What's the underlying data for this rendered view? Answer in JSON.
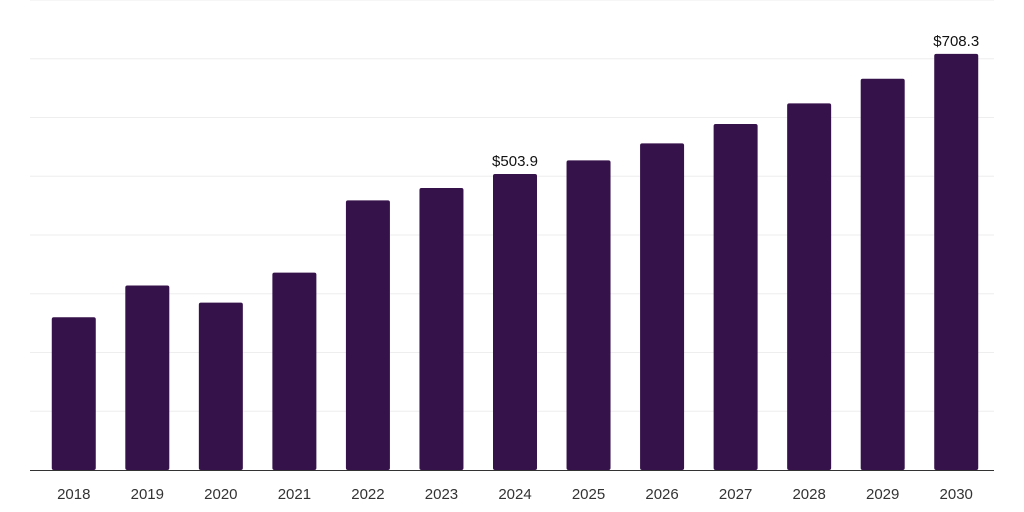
{
  "chart_data": {
    "type": "bar",
    "categories": [
      "2018",
      "2019",
      "2020",
      "2021",
      "2022",
      "2023",
      "2024",
      "2025",
      "2026",
      "2027",
      "2028",
      "2029",
      "2030"
    ],
    "values": [
      260,
      314,
      285,
      336,
      459,
      480,
      503.9,
      527,
      556,
      589,
      624,
      666,
      708.3
    ],
    "ylim": [
      0,
      800
    ],
    "grid": true,
    "data_labels": [
      {
        "index": 6,
        "text": "$503.9"
      },
      {
        "index": 12,
        "text": "$708.3"
      }
    ],
    "colors": {
      "bar": "#36124a",
      "grid": "#eeeeee",
      "axis": "#333333"
    }
  }
}
